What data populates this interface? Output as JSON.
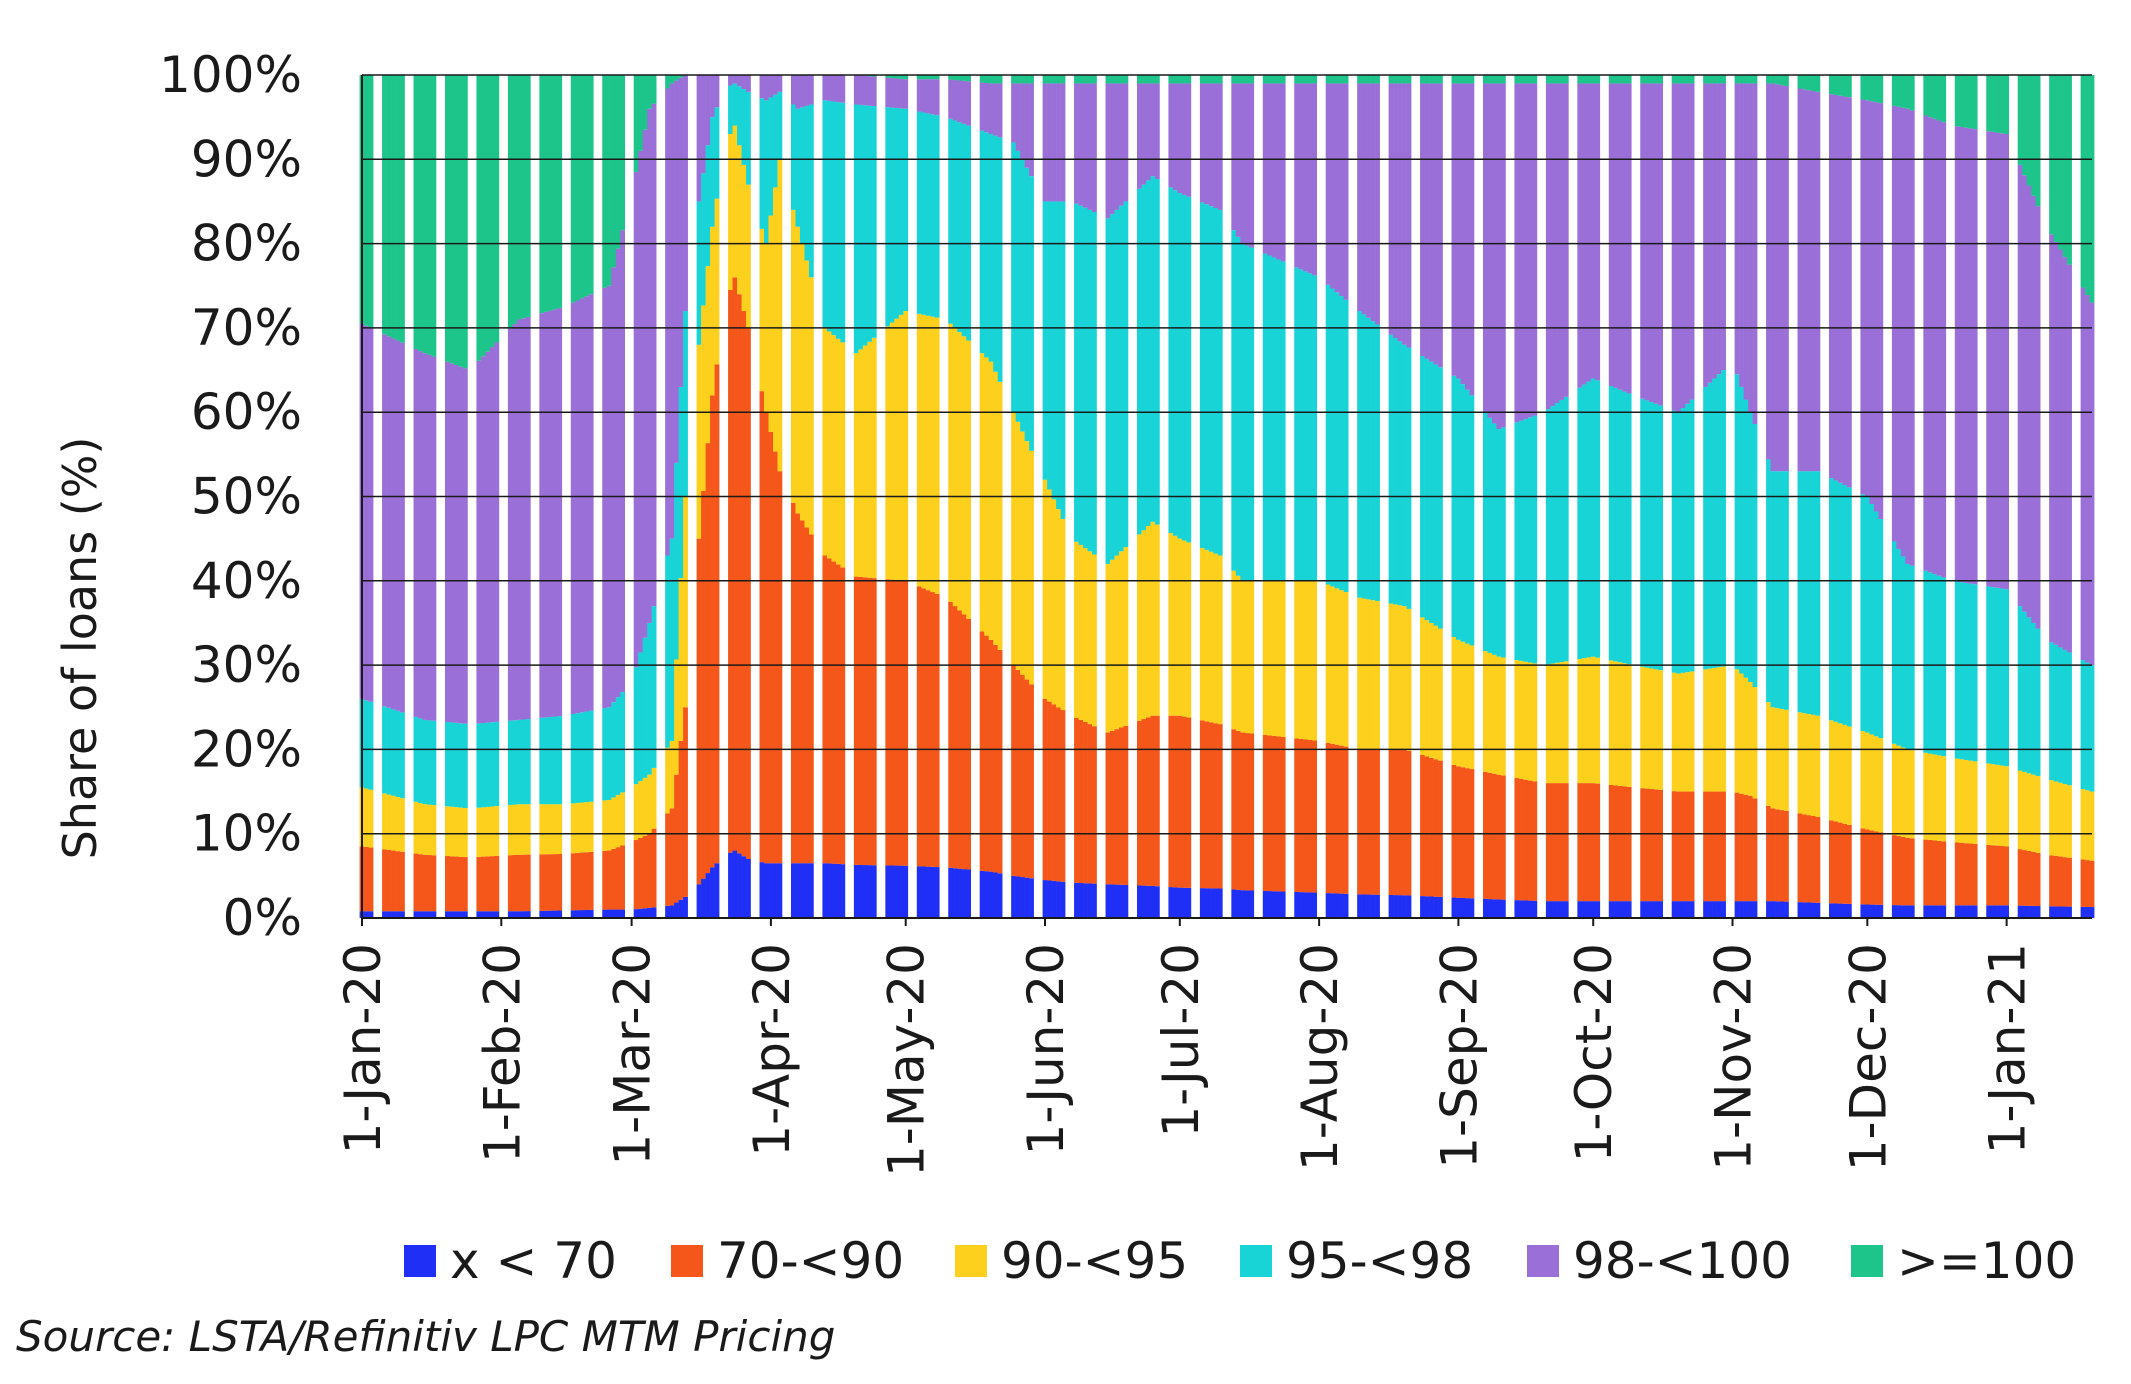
{
  "chart_data": {
    "type": "bar",
    "stacked": true,
    "ylabel": "Share of loans (%)",
    "ylim": [
      0,
      100
    ],
    "yticks": [
      "0%",
      "10%",
      "20%",
      "30%",
      "40%",
      "50%",
      "60%",
      "70%",
      "80%",
      "90%",
      "100%"
    ],
    "x_start": "1-Jan-20",
    "x_end": "20-Jan-21",
    "xtick_labels": [
      "1-Jan-20",
      "1-Feb-20",
      "1-Mar-20",
      "1-Apr-20",
      "1-May-20",
      "1-Jun-20",
      "1-Jul-20",
      "1-Aug-20",
      "1-Sep-20",
      "1-Oct-20",
      "1-Nov-20",
      "1-Dec-20",
      "1-Jan-21"
    ],
    "grid": true,
    "legend_position": "bottom",
    "series": [
      {
        "name": "x < 70",
        "color": "#1f2ff5"
      },
      {
        "name": "70-<90",
        "color": "#f5561a"
      },
      {
        "name": "90-<95",
        "color": "#fdd01e"
      },
      {
        "name": "95-<98",
        "color": "#19d4d6"
      },
      {
        "name": "98-<100",
        "color": "#9a6fd7"
      },
      {
        "name": ">=100",
        "color": "#1dc58b"
      }
    ],
    "cumulative_keys": [
      "x < 70",
      "70-<90",
      "90-<95",
      "95-<98",
      "98-<100"
    ],
    "cumulative_points": [
      {
        "date": "1-Jan-20",
        "c": [
          0.8,
          8.5,
          15.5,
          26,
          70.5
        ]
      },
      {
        "date": "15-Jan-20",
        "c": [
          0.8,
          7.5,
          13.5,
          23.5,
          67
        ]
      },
      {
        "date": "25-Jan-20",
        "c": [
          0.8,
          7.2,
          13,
          23,
          65
        ]
      },
      {
        "date": "5-Feb-20",
        "c": [
          0.8,
          7.5,
          13.5,
          23.5,
          71
        ]
      },
      {
        "date": "15-Feb-20",
        "c": [
          0.9,
          7.6,
          13.5,
          24,
          72.5
        ]
      },
      {
        "date": "25-Feb-20",
        "c": [
          1,
          8,
          14,
          25,
          75
        ]
      },
      {
        "date": "1-Mar-20",
        "c": [
          1,
          9,
          15.5,
          28,
          86
        ]
      },
      {
        "date": "5-Mar-20",
        "c": [
          1.2,
          10,
          17,
          35,
          96
        ]
      },
      {
        "date": "10-Mar-20",
        "c": [
          1.5,
          13,
          21,
          45,
          99
        ]
      },
      {
        "date": "13-Mar-20",
        "c": [
          2.5,
          25,
          50,
          72,
          100
        ]
      },
      {
        "date": "16-Mar-20",
        "c": [
          4,
          45,
          68,
          85,
          100
        ]
      },
      {
        "date": "19-Mar-20",
        "c": [
          6,
          62,
          82,
          95,
          100
        ]
      },
      {
        "date": "22-Mar-20",
        "c": [
          7.5,
          73,
          92,
          98.5,
          100
        ]
      },
      {
        "date": "24-Mar-20",
        "c": [
          8,
          76,
          94,
          99,
          100
        ]
      },
      {
        "date": "27-Mar-20",
        "c": [
          7,
          70,
          87,
          98,
          100
        ]
      },
      {
        "date": "31-Mar-20",
        "c": [
          6.5,
          60,
          80,
          97,
          100
        ]
      },
      {
        "date": "3-Apr-20",
        "c": [
          6.5,
          53,
          90,
          98,
          100
        ]
      },
      {
        "date": "7-Apr-20",
        "c": [
          6.5,
          48,
          82,
          96,
          100
        ]
      },
      {
        "date": "13-Apr-20",
        "c": [
          6.5,
          43,
          70,
          97,
          100
        ]
      },
      {
        "date": "20-Apr-20",
        "c": [
          6.3,
          40.5,
          67,
          96.5,
          100
        ]
      },
      {
        "date": "1-May-20",
        "c": [
          6.2,
          40,
          72,
          96,
          99.5
        ]
      },
      {
        "date": "10-May-20",
        "c": [
          6,
          38,
          71,
          95,
          99.5
        ]
      },
      {
        "date": "20-May-20",
        "c": [
          5.5,
          33,
          66,
          93,
          99
        ]
      },
      {
        "date": "25-May-20",
        "c": [
          5,
          30,
          60,
          92,
          99
        ]
      },
      {
        "date": "1-Jun-20",
        "c": [
          4.5,
          26,
          52,
          85,
          99
        ]
      },
      {
        "date": "7-Jun-20",
        "c": [
          4.2,
          24,
          45,
          85,
          99
        ]
      },
      {
        "date": "15-Jun-20",
        "c": [
          4,
          22,
          42,
          83,
          99
        ]
      },
      {
        "date": "25-Jun-20",
        "c": [
          3.8,
          24,
          47,
          88,
          99
        ]
      },
      {
        "date": "1-Jul-20",
        "c": [
          3.6,
          24,
          45,
          86,
          99
        ]
      },
      {
        "date": "10-Jul-20",
        "c": [
          3.5,
          23,
          43,
          84,
          99
        ]
      },
      {
        "date": "15-Jul-20",
        "c": [
          3.3,
          22,
          40,
          80,
          99
        ]
      },
      {
        "date": "1-Aug-20",
        "c": [
          3,
          21,
          40,
          76,
          99
        ]
      },
      {
        "date": "10-Aug-20",
        "c": [
          2.8,
          20,
          38,
          72,
          99
        ]
      },
      {
        "date": "20-Aug-20",
        "c": [
          2.7,
          20,
          37,
          68,
          99
        ]
      },
      {
        "date": "1-Sep-20",
        "c": [
          2.4,
          18,
          33,
          64,
          99
        ]
      },
      {
        "date": "10-Sep-20",
        "c": [
          2.2,
          17,
          31,
          58,
          99
        ]
      },
      {
        "date": "20-Sep-20",
        "c": [
          2,
          16,
          30,
          60,
          99
        ]
      },
      {
        "date": "1-Oct-20",
        "c": [
          2,
          16,
          31,
          64,
          99
        ]
      },
      {
        "date": "10-Oct-20",
        "c": [
          2,
          15.5,
          30,
          62,
          99
        ]
      },
      {
        "date": "20-Oct-20",
        "c": [
          2,
          15,
          29,
          60,
          99
        ]
      },
      {
        "date": "1-Nov-20",
        "c": [
          2,
          15,
          30,
          66,
          99
        ]
      },
      {
        "date": "5-Nov-20",
        "c": [
          2,
          14.5,
          28,
          60,
          99
        ]
      },
      {
        "date": "10-Nov-20",
        "c": [
          2,
          13,
          25,
          53,
          99
        ]
      },
      {
        "date": "20-Nov-20",
        "c": [
          1.8,
          12,
          24,
          53,
          98
        ]
      },
      {
        "date": "1-Dec-20",
        "c": [
          1.6,
          10.5,
          22,
          50,
          97
        ]
      },
      {
        "date": "10-Dec-20",
        "c": [
          1.5,
          9.5,
          20,
          42,
          96
        ]
      },
      {
        "date": "20-Dec-20",
        "c": [
          1.5,
          9,
          19,
          40,
          94
        ]
      },
      {
        "date": "1-Jan-21",
        "c": [
          1.5,
          8.5,
          18,
          39,
          93
        ]
      },
      {
        "date": "10-Jan-21",
        "c": [
          1.4,
          7.5,
          16.5,
          33,
          82
        ]
      },
      {
        "date": "20-Jan-21",
        "c": [
          1.3,
          6.8,
          15,
          30,
          73
        ]
      }
    ]
  },
  "source": "Source: LSTA/Refinitiv LPC MTM Pricing"
}
